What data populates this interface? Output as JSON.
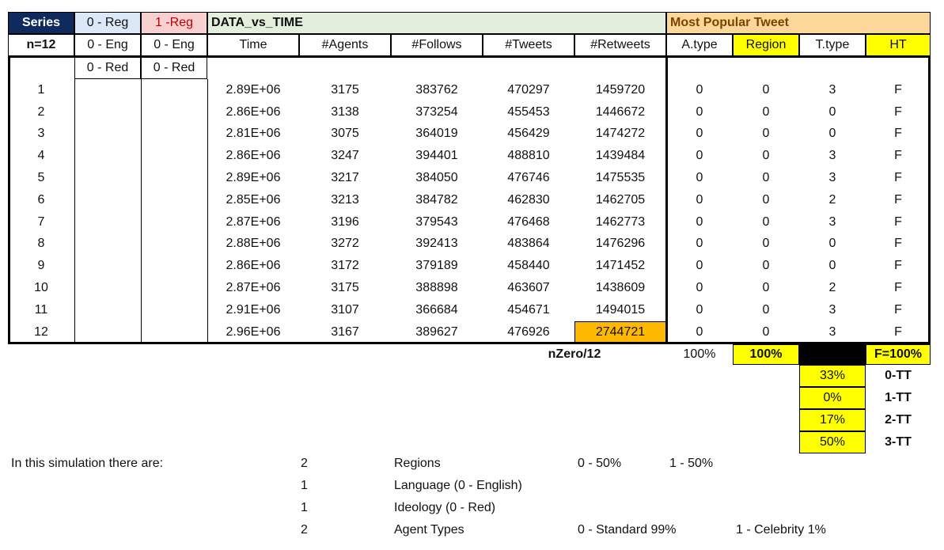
{
  "header": {
    "series": "Series",
    "reg0": "0 - Reg",
    "reg1": "1 -Reg",
    "data_title": "DATA_vs_TIME",
    "popular": "Most Popular Tweet"
  },
  "subheader": {
    "n": "n=12",
    "eng0": "0 - Eng",
    "eng1": "0 - Eng",
    "cols": [
      "Time",
      "#Agents",
      "#Follows",
      "#Tweets",
      "#Retweets"
    ],
    "popcols": [
      "A.type",
      "Region",
      "T.type",
      "HT"
    ]
  },
  "red": {
    "c1": "0 - Red",
    "c2": "0 - Red"
  },
  "rows": [
    [
      "1",
      "2.89E+06",
      "3175",
      "383762",
      "470297",
      "1459720",
      "0",
      "0",
      "3",
      "F"
    ],
    [
      "2",
      "2.86E+06",
      "3138",
      "373254",
      "455453",
      "1446672",
      "0",
      "0",
      "0",
      "F"
    ],
    [
      "3",
      "2.81E+06",
      "3075",
      "364019",
      "456429",
      "1474272",
      "0",
      "0",
      "0",
      "F"
    ],
    [
      "4",
      "2.86E+06",
      "3247",
      "394401",
      "488810",
      "1439484",
      "0",
      "0",
      "3",
      "F"
    ],
    [
      "5",
      "2.89E+06",
      "3217",
      "384050",
      "476746",
      "1475535",
      "0",
      "0",
      "3",
      "F"
    ],
    [
      "6",
      "2.85E+06",
      "3213",
      "384782",
      "462830",
      "1462705",
      "0",
      "0",
      "2",
      "F"
    ],
    [
      "7",
      "2.87E+06",
      "3196",
      "379543",
      "476468",
      "1462773",
      "0",
      "0",
      "3",
      "F"
    ],
    [
      "8",
      "2.88E+06",
      "3272",
      "392413",
      "483864",
      "1476296",
      "0",
      "0",
      "0",
      "F"
    ],
    [
      "9",
      "2.86E+06",
      "3172",
      "379189",
      "458440",
      "1471452",
      "0",
      "0",
      "0",
      "F"
    ],
    [
      "10",
      "2.87E+06",
      "3175",
      "388898",
      "463607",
      "1438609",
      "0",
      "0",
      "2",
      "F"
    ],
    [
      "11",
      "2.91E+06",
      "3107",
      "366684",
      "454671",
      "1494015",
      "0",
      "0",
      "3",
      "F"
    ],
    [
      "12",
      "2.96E+06",
      "3167",
      "389627",
      "476926",
      "2744721",
      "0",
      "0",
      "3",
      "F"
    ]
  ],
  "summary": {
    "label": "nZero/12",
    "atype": "100%",
    "region": "100%",
    "ht": "F=100%",
    "tt": [
      {
        "pct": "33%",
        "label": "0-TT"
      },
      {
        "pct": "0%",
        "label": "1-TT"
      },
      {
        "pct": "17%",
        "label": "2-TT"
      },
      {
        "pct": "50%",
        "label": "3-TT"
      }
    ]
  },
  "footer": {
    "intro": "In this simulation there are:",
    "lines": [
      {
        "count": "2",
        "label": "Regions",
        "a": "0 - 50%",
        "b": "1 - 50%"
      },
      {
        "count": "1",
        "label": "Language (0 - English)",
        "a": "",
        "b": ""
      },
      {
        "count": "1",
        "label": "Ideology (0 - Red)",
        "a": "",
        "b": ""
      },
      {
        "count": "2",
        "label": "Agent Types",
        "a": "0 - Standard 99%",
        "b": "1 - Celebrity 1%"
      }
    ]
  },
  "colors": {
    "dark_header": "#0f2a5c",
    "highlight_yellow": "#ffff00",
    "highlight_orange": "#ffb800"
  }
}
